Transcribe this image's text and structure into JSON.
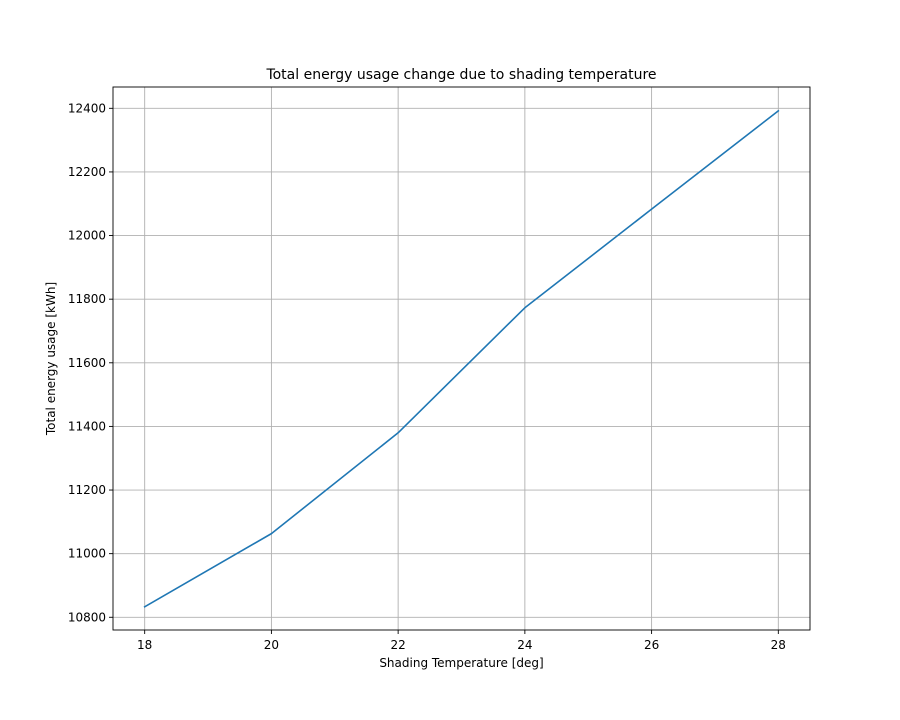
{
  "chart_data": {
    "type": "line",
    "title": "Total energy usage change due to shading temperature",
    "xlabel": "Shading Temperature [deg]",
    "ylabel": "Total energy usage [kWh]",
    "x": [
      18,
      20,
      22,
      24,
      26,
      28
    ],
    "series": [
      {
        "values": [
          10833,
          11063,
          11380,
          11773,
          12083,
          12392
        ],
        "color": "#1f77b4"
      }
    ],
    "xlim": [
      17.5,
      28.5
    ],
    "ylim": [
      10760,
      12467
    ],
    "xticks": [
      18,
      20,
      22,
      24,
      26,
      28
    ],
    "yticks": [
      10800,
      11000,
      11200,
      11400,
      11600,
      11800,
      12000,
      12200,
      12400
    ],
    "grid": true,
    "legend": "none"
  }
}
